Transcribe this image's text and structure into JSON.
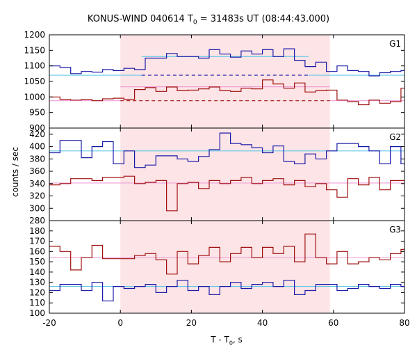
{
  "chart_data": {
    "type": "line",
    "title": {
      "main": "KONUS-WIND 040614 T",
      "sub": "0",
      "rest": " = 31483s UT (08:44:43.000)"
    },
    "xlabel": {
      "main": "T - T",
      "sub": "0",
      "rest": ", s"
    },
    "ylabel": "counts / sec",
    "xlim": [
      -20,
      80
    ],
    "xticks": [
      -20,
      0,
      20,
      40,
      60,
      80
    ],
    "highlight_interval": [
      0,
      59
    ],
    "colors": {
      "blue": "#1a1aa8",
      "red": "#a01010",
      "cyan": "#66c8e8",
      "pink": "#f0a0d8",
      "shade": "#fde4e6"
    },
    "panels": [
      {
        "label": "G1",
        "ylim": [
          900,
          1200
        ],
        "yticks": [
          900,
          950,
          1000,
          1050,
          1100,
          1150,
          1200
        ],
        "x_edges": [
          -20,
          -17,
          -14,
          -11,
          -8,
          -5,
          -2,
          1,
          4,
          7,
          10,
          13,
          16,
          19,
          22,
          25,
          28,
          31,
          34,
          37,
          40,
          43,
          46,
          49,
          52,
          55,
          58,
          61,
          64,
          67,
          70,
          73,
          76,
          79,
          82
        ],
        "series": [
          {
            "color": "blue",
            "values": [
              1100,
              1095,
              1075,
              1082,
              1080,
              1088,
              1085,
              1092,
              1088,
              1125,
              1125,
              1140,
              1130,
              1130,
              1125,
              1152,
              1138,
              1128,
              1148,
              1138,
              1152,
              1130,
              1155,
              1118,
              1098,
              1112,
              1082,
              1100,
              1085,
              1082,
              1068,
              1078,
              1082,
              1085
            ]
          },
          {
            "color": "red",
            "values": [
              1000,
              992,
              990,
              992,
              988,
              994,
              996,
              992,
              1024,
              1030,
              1018,
              1032,
              1020,
              1022,
              1026,
              1032,
              1020,
              1018,
              1028,
              1026,
              1055,
              1042,
              1028,
              1045,
              1016,
              1020,
              1022,
              990,
              985,
              975,
              990,
              980,
              985,
              1028
            ]
          }
        ],
        "fit_lines": [
          {
            "color": "cyan",
            "style": "solid",
            "x": [
              -20,
              6
            ],
            "y": 1070
          },
          {
            "color": "cyan",
            "style": "solid",
            "x": [
              6,
              53
            ],
            "y": 1130
          },
          {
            "color": "cyan",
            "style": "solid",
            "x": [
              53,
              80
            ],
            "y": 1070
          },
          {
            "color": "blue",
            "style": "dashed",
            "x": [
              6,
              53
            ],
            "y": 1070
          },
          {
            "color": "pink",
            "style": "solid",
            "x": [
              -20,
              0
            ],
            "y": 988
          },
          {
            "color": "pink",
            "style": "solid",
            "x": [
              0,
              59
            ],
            "y": 1033
          },
          {
            "color": "pink",
            "style": "solid",
            "x": [
              59,
              80
            ],
            "y": 988
          },
          {
            "color": "red",
            "style": "dashed",
            "x": [
              0,
              59
            ],
            "y": 988
          }
        ]
      },
      {
        "label": "G2",
        "ylim": [
          280,
          430
        ],
        "yticks": [
          280,
          300,
          320,
          340,
          360,
          380,
          400,
          420
        ],
        "x_edges": [
          -20,
          -17,
          -14,
          -11,
          -8,
          -5,
          -2,
          1,
          4,
          7,
          10,
          13,
          16,
          19,
          22,
          25,
          28,
          31,
          34,
          37,
          40,
          43,
          46,
          49,
          52,
          55,
          58,
          61,
          64,
          67,
          70,
          73,
          76,
          79,
          82
        ],
        "series": [
          {
            "color": "blue",
            "values": [
              390,
              410,
              410,
              382,
              400,
              408,
              372,
              393,
              366,
              370,
              385,
              385,
              380,
              376,
              384,
              395,
              422,
              405,
              403,
              398,
              390,
              401,
              376,
              372,
              388,
              380,
              393,
              405,
              405,
              400,
              393,
              372,
              400,
              372
            ]
          },
          {
            "color": "red",
            "values": [
              338,
              340,
              348,
              348,
              345,
              350,
              350,
              352,
              340,
              342,
              345,
              296,
              340,
              342,
              332,
              345,
              340,
              345,
              350,
              340,
              345,
              348,
              338,
              345,
              335,
              340,
              330,
              318,
              348,
              338,
              350,
              330,
              345,
              345
            ]
          }
        ],
        "fit_lines": [
          {
            "color": "cyan",
            "style": "solid",
            "x": [
              -20,
              80
            ],
            "y": 393
          },
          {
            "color": "pink",
            "style": "solid",
            "x": [
              -20,
              80
            ],
            "y": 341
          }
        ]
      },
      {
        "label": "G3",
        "ylim": [
          100,
          190
        ],
        "yticks": [
          100,
          110,
          120,
          130,
          140,
          150,
          160,
          170,
          180
        ],
        "x_edges": [
          -20,
          -17,
          -14,
          -11,
          -8,
          -5,
          -2,
          1,
          4,
          7,
          10,
          13,
          16,
          19,
          22,
          25,
          28,
          31,
          34,
          37,
          40,
          43,
          46,
          49,
          52,
          55,
          58,
          61,
          64,
          67,
          70,
          73,
          76,
          79,
          82
        ],
        "series": [
          {
            "color": "blue",
            "values": [
              122,
              128,
              128,
              122,
              130,
              112,
              126,
              124,
              126,
              128,
              120,
              126,
              132,
              122,
              126,
              118,
              126,
              130,
              124,
              128,
              130,
              126,
              132,
              118,
              122,
              128,
              128,
              122,
              124,
              128,
              126,
              124,
              128,
              126
            ]
          },
          {
            "color": "red",
            "values": [
              165,
              160,
              142,
              154,
              166,
              153,
              153,
              153,
              156,
              158,
              152,
              138,
              160,
              148,
              156,
              164,
              150,
              158,
              164,
              154,
              164,
              158,
              165,
              150,
              177,
              154,
              148,
              160,
              148,
              150,
              154,
              152,
              158,
              162
            ]
          }
        ],
        "fit_lines": [
          {
            "color": "cyan",
            "style": "solid",
            "x": [
              -20,
              80
            ],
            "y": 126
          },
          {
            "color": "pink",
            "style": "solid",
            "x": [
              -20,
              80
            ],
            "y": 154
          }
        ]
      }
    ]
  }
}
